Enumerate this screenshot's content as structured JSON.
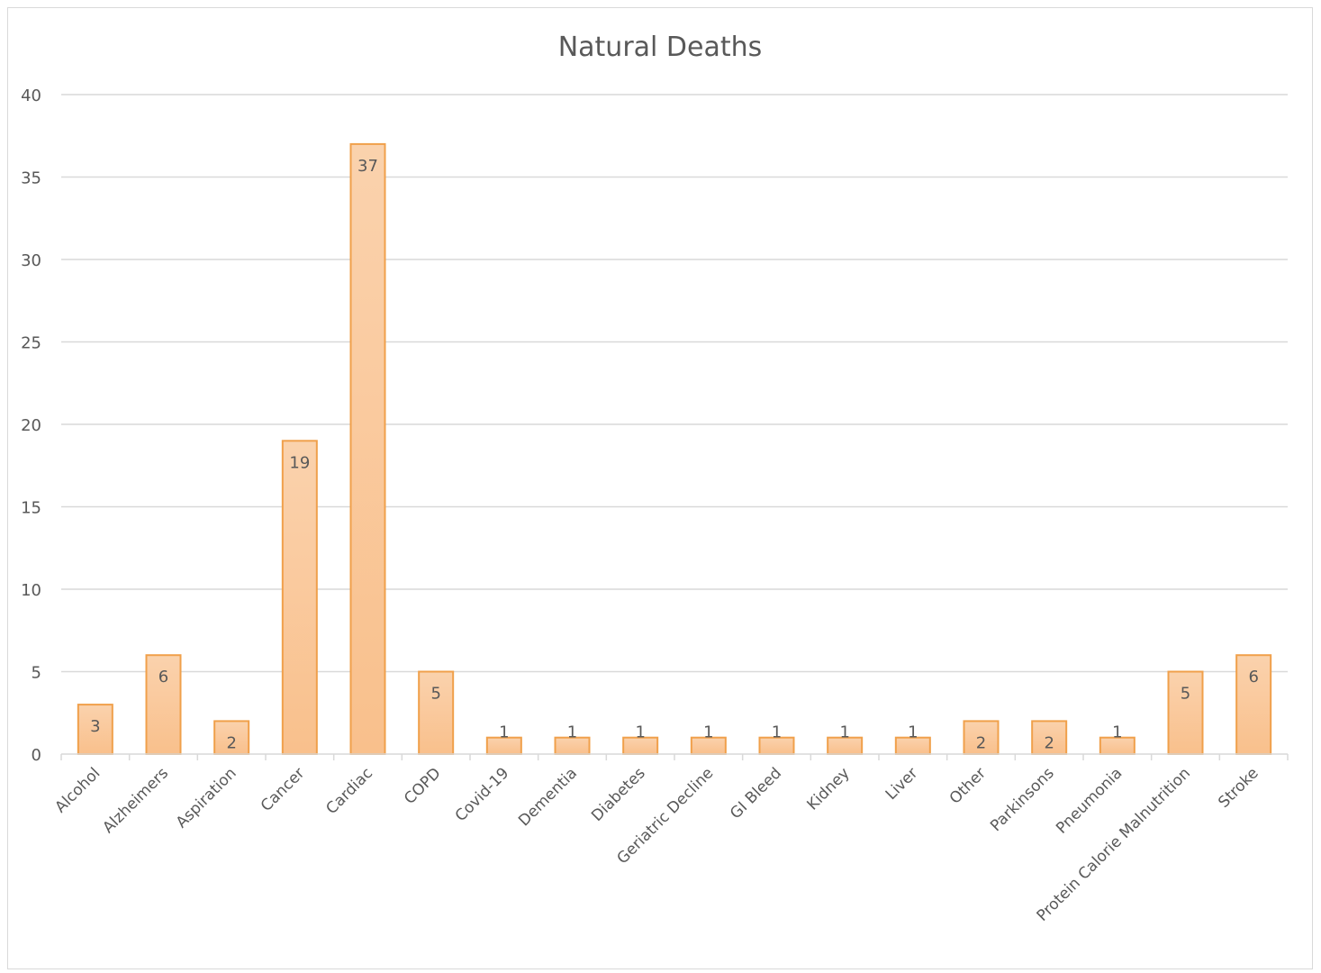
{
  "chart_data": {
    "type": "bar",
    "title": "Natural Deaths",
    "categories": [
      "Alcohol",
      "Alzheimers",
      "Aspiration",
      "Cancer",
      "Cardiac",
      "COPD",
      "Covid-19",
      "Dementia",
      "Diabetes",
      "Geriatric Decline",
      "GI Bleed",
      "Kidney",
      "Liver",
      "Other",
      "Parkinsons",
      "Pneumonia",
      "Protein Calorie Malnutrition",
      "Stroke"
    ],
    "values": [
      3,
      6,
      2,
      19,
      37,
      5,
      1,
      1,
      1,
      1,
      1,
      1,
      1,
      2,
      2,
      1,
      5,
      6
    ],
    "data_labels": [
      "3",
      "6",
      "2",
      "19",
      "37",
      "5",
      "1",
      "1",
      "1",
      "1",
      "1",
      "1",
      "1",
      "2",
      "2",
      "1",
      "5",
      "6"
    ],
    "ylim": [
      0,
      40
    ],
    "yticks": [
      0,
      5,
      10,
      15,
      20,
      25,
      30,
      35,
      40
    ],
    "grid": true,
    "legend": "none",
    "colors": {
      "bar_fill_top": "#fad2ad",
      "bar_fill_bottom": "#f9c08c",
      "bar_stroke": "#f0a04b",
      "grid": "#d9d9d9",
      "text": "#595959"
    }
  }
}
